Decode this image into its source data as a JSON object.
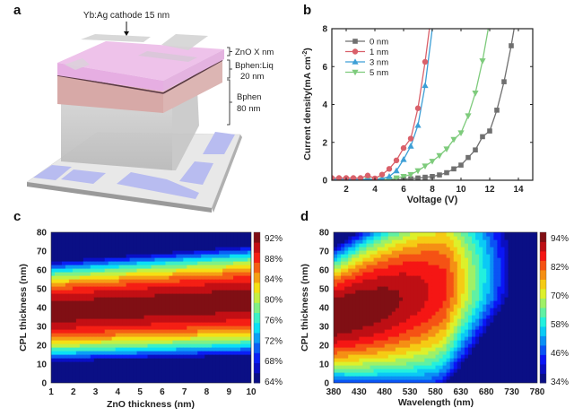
{
  "panels": {
    "a": {
      "label": "a",
      "annotations": {
        "cathode": "Yb:Ag cathode 15 nm",
        "zno": "ZnO X nm",
        "bphen_liq_1": "Bphen:Liq",
        "bphen_liq_2": "20 nm",
        "bphen_1": "Bphen",
        "bphen_2": "80 nm"
      },
      "colors": {
        "zno_layer": "#e9b6e6",
        "bphen_liq_layer": "#d9a8a6",
        "bphen_layer": "#c9c9c9",
        "substrate": "#e6e6e6",
        "ito_pads": "#b9bdf0",
        "cathode_strips": "#d6d6d6"
      }
    },
    "b": {
      "label": "b"
    },
    "c": {
      "label": "c"
    },
    "d": {
      "label": "d"
    }
  },
  "chart_data": [
    {
      "id": "b",
      "type": "line",
      "title": "",
      "xlabel": "Voltage (V)",
      "ylabel": "Current density(mA cm",
      "ylabel_sup": "-2",
      "ylabel_tail": ")",
      "xlim": [
        1,
        15
      ],
      "ylim": [
        0,
        8
      ],
      "xticks": [
        2,
        4,
        6,
        8,
        10,
        12,
        14
      ],
      "yticks": [
        0,
        2,
        4,
        6,
        8
      ],
      "grid": false,
      "legend_position": "top-left",
      "series": [
        {
          "name": "0 nm",
          "color": "#6f6f6f",
          "marker": "square",
          "x": [
            1,
            1.5,
            2,
            2.5,
            3,
            3.5,
            4,
            4.5,
            5,
            5.5,
            6,
            6.5,
            7,
            7.5,
            8,
            8.5,
            9,
            9.5,
            10,
            10.5,
            11,
            11.5,
            12,
            12.5,
            13,
            13.5,
            13.7
          ],
          "y": [
            0,
            0,
            0,
            0,
            0,
            0,
            0,
            0,
            0.01,
            0.03,
            0.05,
            0.08,
            0.12,
            0.16,
            0.2,
            0.28,
            0.4,
            0.6,
            0.8,
            1.2,
            1.6,
            2.3,
            2.6,
            3.7,
            5.2,
            7.1,
            8.0
          ],
          "marker_x": [
            1,
            1.5,
            2,
            2.5,
            3,
            3.5,
            4,
            4.5,
            5,
            5.5,
            6,
            6.5,
            7,
            7.5,
            8,
            8.5,
            9,
            9.5,
            10,
            10.5,
            11,
            11.5,
            12,
            12.5,
            13,
            13.5
          ]
        },
        {
          "name": "1 nm",
          "color": "#d9606a",
          "marker": "circle",
          "x": [
            1,
            1.5,
            2,
            2.5,
            3,
            3.5,
            4,
            4.5,
            5,
            5.5,
            6,
            6.5,
            7,
            7.5,
            7.8
          ],
          "y": [
            0.12,
            0.12,
            0.12,
            0.12,
            0.12,
            0.25,
            0.1,
            0.3,
            0.6,
            1.05,
            1.7,
            2.2,
            3.8,
            6.25,
            8.0
          ],
          "marker_x": [
            1,
            1.5,
            2,
            2.5,
            3,
            3.5,
            4,
            4.5,
            5,
            5.5,
            6,
            6.5,
            7,
            7.5
          ]
        },
        {
          "name": "3 nm",
          "color": "#3d9fd6",
          "marker": "triangle-up",
          "x": [
            1,
            1.5,
            2,
            2.5,
            3,
            3.5,
            4,
            4.5,
            5,
            5.5,
            6,
            6.5,
            7,
            7.5,
            8.0
          ],
          "y": [
            0.05,
            0.05,
            0.05,
            0.05,
            0.05,
            0.05,
            0.05,
            0.08,
            0.2,
            0.5,
            1.1,
            1.8,
            2.9,
            5.0,
            8.0
          ],
          "marker_x": [
            1,
            1.5,
            2,
            2.5,
            3,
            3.5,
            4,
            4.5,
            5,
            5.5,
            6,
            6.5,
            7,
            7.5
          ]
        },
        {
          "name": "5 nm",
          "color": "#7ecb7c",
          "marker": "triangle-down",
          "x": [
            1,
            1.5,
            2,
            2.5,
            3,
            3.5,
            4,
            4.5,
            5,
            5.5,
            6,
            6.5,
            7,
            7.5,
            8,
            8.5,
            9,
            9.5,
            10,
            10.5,
            11,
            11.5,
            11.9
          ],
          "y": [
            0.02,
            0.02,
            0.02,
            0.02,
            0.02,
            0.02,
            0.02,
            0.02,
            0.05,
            0.12,
            0.2,
            0.3,
            0.5,
            0.75,
            1.0,
            1.3,
            1.65,
            2.15,
            2.5,
            3.4,
            4.6,
            6.3,
            8.0
          ],
          "marker_x": [
            1,
            1.5,
            2,
            2.5,
            3,
            3.5,
            4,
            4.5,
            5,
            5.5,
            6,
            6.5,
            7,
            7.5,
            8,
            8.5,
            9,
            9.5,
            10,
            10.5,
            11,
            11.5
          ]
        }
      ]
    },
    {
      "id": "c",
      "type": "heatmap",
      "title": "",
      "xlabel": "ZnO thickness (nm)",
      "ylabel": "CPL thickness (nm)",
      "xlim": [
        1,
        10
      ],
      "ylim": [
        0,
        80
      ],
      "xticks": [
        1,
        2,
        3,
        4,
        5,
        6,
        7,
        8,
        9,
        10
      ],
      "yticks": [
        0,
        10,
        20,
        30,
        40,
        50,
        60,
        70,
        80
      ],
      "colorbar": {
        "min": 64,
        "max": 94,
        "ticks": [
          "92%",
          "88%",
          "84%",
          "80%",
          "76%",
          "72%",
          "68%",
          "64%"
        ],
        "tick_values": [
          92,
          88,
          84,
          80,
          76,
          72,
          68,
          64
        ],
        "levels": 15
      },
      "description": "Outcoupling efficiency; maximum (~93%) band centered at CPL ~40 nm, widening toward ZnO 10 nm; falls to ~64% at CPL 0 and 80 nm",
      "peak": {
        "cpl_nm_at_zno1": 38,
        "cpl_nm_at_zno10": 44,
        "value_pct": 93
      },
      "min_value_pct": 64
    },
    {
      "id": "d",
      "type": "heatmap",
      "title": "",
      "xlabel": "Wavelength (nm)",
      "ylabel": "CPL thickness (nm)",
      "xlim": [
        380,
        780
      ],
      "ylim": [
        0,
        80
      ],
      "xticks": [
        380,
        430,
        480,
        530,
        580,
        630,
        680,
        730,
        780
      ],
      "yticks": [
        0,
        10,
        20,
        30,
        40,
        50,
        60,
        70,
        80
      ],
      "colorbar": {
        "min": 34,
        "max": 98,
        "ticks": [
          "94%",
          "82%",
          "70%",
          "58%",
          "46%",
          "34%"
        ],
        "tick_values": [
          94,
          82,
          70,
          58,
          46,
          34
        ],
        "levels": 16
      },
      "description": "Maximum (~94%) near 380-430 nm at CPL ~35 nm; optimum CPL thickness shifts up with wavelength; lowest (~34%) at 780 nm, CPL 0 nm",
      "peak": {
        "wavelength_nm": 400,
        "cpl_nm": 35,
        "value_pct": 94
      },
      "min": {
        "wavelength_nm": 780,
        "cpl_nm": 0,
        "value_pct": 34
      }
    }
  ]
}
